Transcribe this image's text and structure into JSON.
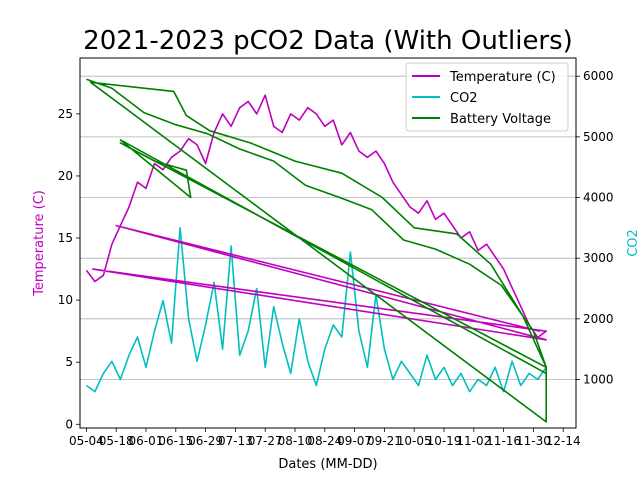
{
  "chart_data": {
    "type": "line",
    "title": "2021-2023 pCO2 Data (With Outliers)",
    "xlabel": "Dates (MM-DD)",
    "ylabel_left": "Temperature (C)",
    "ylabel_right": "CO2",
    "x_ticks": [
      "05-04",
      "05-18",
      "06-01",
      "06-15",
      "06-29",
      "07-13",
      "07-27",
      "08-10",
      "08-24",
      "09-07",
      "09-21",
      "10-05",
      "10-19",
      "11-02",
      "11-16",
      "11-30",
      "12-14"
    ],
    "x_range": [
      "05-01",
      "12-20"
    ],
    "ylim_left": [
      -0.3,
      29.5
    ],
    "ylim_right": [
      200,
      6300
    ],
    "y_ticks_left": [
      0,
      5,
      10,
      15,
      20,
      25
    ],
    "y_ticks_right": [
      1000,
      2000,
      3000,
      4000,
      5000,
      6000
    ],
    "grid": "horizontal lines at right-axis ticks",
    "legend_position": "top-right",
    "series": [
      {
        "name": "Temperature (C)",
        "axis": "left",
        "color": "#bf00bf",
        "values": [
          {
            "x": "05-04",
            "y": 12.4
          },
          {
            "x": "05-08",
            "y": 11.5
          },
          {
            "x": "05-12",
            "y": 12.0
          },
          {
            "x": "05-16",
            "y": 14.5
          },
          {
            "x": "05-20",
            "y": 16.0
          },
          {
            "x": "05-24",
            "y": 17.5
          },
          {
            "x": "05-28",
            "y": 19.5
          },
          {
            "x": "06-01",
            "y": 19.0
          },
          {
            "x": "06-05",
            "y": 21.0
          },
          {
            "x": "06-09",
            "y": 20.5
          },
          {
            "x": "06-13",
            "y": 21.5
          },
          {
            "x": "06-17",
            "y": 22.0
          },
          {
            "x": "06-21",
            "y": 23.0
          },
          {
            "x": "06-25",
            "y": 22.5
          },
          {
            "x": "06-29",
            "y": 21.0
          },
          {
            "x": "07-03",
            "y": 23.5
          },
          {
            "x": "07-07",
            "y": 25.0
          },
          {
            "x": "07-11",
            "y": 24.0
          },
          {
            "x": "07-15",
            "y": 25.5
          },
          {
            "x": "07-19",
            "y": 26.0
          },
          {
            "x": "07-23",
            "y": 25.0
          },
          {
            "x": "07-27",
            "y": 26.5
          },
          {
            "x": "07-31",
            "y": 24.0
          },
          {
            "x": "08-04",
            "y": 23.5
          },
          {
            "x": "08-08",
            "y": 25.0
          },
          {
            "x": "08-12",
            "y": 24.5
          },
          {
            "x": "08-16",
            "y": 25.5
          },
          {
            "x": "08-20",
            "y": 25.0
          },
          {
            "x": "08-24",
            "y": 24.0
          },
          {
            "x": "08-28",
            "y": 24.5
          },
          {
            "x": "09-01",
            "y": 22.5
          },
          {
            "x": "09-05",
            "y": 23.5
          },
          {
            "x": "09-09",
            "y": 22.0
          },
          {
            "x": "09-13",
            "y": 21.5
          },
          {
            "x": "09-17",
            "y": 22.0
          },
          {
            "x": "09-21",
            "y": 21.0
          },
          {
            "x": "09-25",
            "y": 19.5
          },
          {
            "x": "09-29",
            "y": 18.5
          },
          {
            "x": "10-03",
            "y": 17.5
          },
          {
            "x": "10-07",
            "y": 17.0
          },
          {
            "x": "10-11",
            "y": 18.0
          },
          {
            "x": "10-15",
            "y": 16.5
          },
          {
            "x": "10-19",
            "y": 17.0
          },
          {
            "x": "10-23",
            "y": 16.0
          },
          {
            "x": "10-27",
            "y": 15.0
          },
          {
            "x": "10-31",
            "y": 15.5
          },
          {
            "x": "11-04",
            "y": 14.0
          },
          {
            "x": "11-08",
            "y": 14.5
          },
          {
            "x": "11-12",
            "y": 13.5
          },
          {
            "x": "11-16",
            "y": 12.5
          },
          {
            "x": "11-20",
            "y": 11.0
          },
          {
            "x": "11-24",
            "y": 9.5
          },
          {
            "x": "11-28",
            "y": 8.0
          },
          {
            "x": "12-02",
            "y": 7.0
          },
          {
            "x": "12-06",
            "y": 7.5
          },
          {
            "x": "05-07",
            "y": 12.5
          },
          {
            "x": "12-06",
            "y": 6.8
          },
          {
            "x": "05-18",
            "y": 16.0
          },
          {
            "x": "12-03",
            "y": 7.5
          }
        ]
      },
      {
        "name": "CO2",
        "axis": "right",
        "color": "#00bfbf",
        "values": [
          {
            "x": "05-04",
            "y": 900
          },
          {
            "x": "05-08",
            "y": 800
          },
          {
            "x": "05-12",
            "y": 1100
          },
          {
            "x": "05-16",
            "y": 1300
          },
          {
            "x": "05-20",
            "y": 1000
          },
          {
            "x": "05-24",
            "y": 1400
          },
          {
            "x": "05-28",
            "y": 1700
          },
          {
            "x": "06-01",
            "y": 1200
          },
          {
            "x": "06-05",
            "y": 1800
          },
          {
            "x": "06-09",
            "y": 2300
          },
          {
            "x": "06-13",
            "y": 1600
          },
          {
            "x": "06-17",
            "y": 3500
          },
          {
            "x": "06-21",
            "y": 2000
          },
          {
            "x": "06-25",
            "y": 1300
          },
          {
            "x": "06-29",
            "y": 1900
          },
          {
            "x": "07-03",
            "y": 2600
          },
          {
            "x": "07-07",
            "y": 1500
          },
          {
            "x": "07-11",
            "y": 3200
          },
          {
            "x": "07-15",
            "y": 1400
          },
          {
            "x": "07-19",
            "y": 1800
          },
          {
            "x": "07-23",
            "y": 2500
          },
          {
            "x": "07-27",
            "y": 1200
          },
          {
            "x": "07-31",
            "y": 2200
          },
          {
            "x": "08-04",
            "y": 1600
          },
          {
            "x": "08-08",
            "y": 1100
          },
          {
            "x": "08-12",
            "y": 2000
          },
          {
            "x": "08-16",
            "y": 1300
          },
          {
            "x": "08-20",
            "y": 900
          },
          {
            "x": "08-24",
            "y": 1500
          },
          {
            "x": "08-28",
            "y": 1900
          },
          {
            "x": "09-01",
            "y": 1700
          },
          {
            "x": "09-05",
            "y": 3100
          },
          {
            "x": "09-09",
            "y": 1800
          },
          {
            "x": "09-13",
            "y": 1200
          },
          {
            "x": "09-17",
            "y": 2400
          },
          {
            "x": "09-21",
            "y": 1500
          },
          {
            "x": "09-25",
            "y": 1000
          },
          {
            "x": "09-29",
            "y": 1300
          },
          {
            "x": "10-03",
            "y": 1100
          },
          {
            "x": "10-07",
            "y": 900
          },
          {
            "x": "10-11",
            "y": 1400
          },
          {
            "x": "10-15",
            "y": 1000
          },
          {
            "x": "10-19",
            "y": 1200
          },
          {
            "x": "10-23",
            "y": 900
          },
          {
            "x": "10-27",
            "y": 1100
          },
          {
            "x": "10-31",
            "y": 800
          },
          {
            "x": "11-04",
            "y": 1000
          },
          {
            "x": "11-08",
            "y": 900
          },
          {
            "x": "11-12",
            "y": 1200
          },
          {
            "x": "11-16",
            "y": 800
          },
          {
            "x": "11-20",
            "y": 1300
          },
          {
            "x": "11-24",
            "y": 900
          },
          {
            "x": "11-28",
            "y": 1100
          },
          {
            "x": "12-02",
            "y": 1000
          },
          {
            "x": "12-06",
            "y": 1200
          }
        ]
      },
      {
        "name": "Battery Voltage",
        "axis": "right",
        "color": "#008000",
        "values": [
          {
            "x": "05-04",
            "y": 5950
          },
          {
            "x": "05-16",
            "y": 5800
          },
          {
            "x": "05-31",
            "y": 5400
          },
          {
            "x": "06-15",
            "y": 5200
          },
          {
            "x": "06-30",
            "y": 5050
          },
          {
            "x": "07-15",
            "y": 4800
          },
          {
            "x": "07-31",
            "y": 4600
          },
          {
            "x": "08-15",
            "y": 4200
          },
          {
            "x": "08-31",
            "y": 4000
          },
          {
            "x": "09-15",
            "y": 3800
          },
          {
            "x": "09-30",
            "y": 3300
          },
          {
            "x": "10-15",
            "y": 3150
          },
          {
            "x": "10-31",
            "y": 2900
          },
          {
            "x": "11-15",
            "y": 2550
          },
          {
            "x": "11-30",
            "y": 1800
          },
          {
            "x": "12-06",
            "y": 1200
          },
          {
            "x": "12-06",
            "y": 300
          },
          {
            "x": "05-06",
            "y": 5900
          },
          {
            "x": "06-14",
            "y": 5750
          },
          {
            "x": "06-20",
            "y": 5350
          },
          {
            "x": "07-01",
            "y": 5100
          },
          {
            "x": "07-20",
            "y": 4900
          },
          {
            "x": "08-10",
            "y": 4600
          },
          {
            "x": "09-01",
            "y": 4400
          },
          {
            "x": "09-20",
            "y": 4000
          },
          {
            "x": "10-05",
            "y": 3500
          },
          {
            "x": "10-25",
            "y": 3400
          },
          {
            "x": "11-10",
            "y": 2900
          },
          {
            "x": "11-25",
            "y": 2050
          },
          {
            "x": "12-06",
            "y": 1200
          },
          {
            "x": "05-20",
            "y": 4900
          },
          {
            "x": "06-05",
            "y": 4600
          },
          {
            "x": "06-20",
            "y": 4450
          },
          {
            "x": "06-22",
            "y": 4000
          },
          {
            "x": "05-20",
            "y": 4950
          },
          {
            "x": "12-06",
            "y": 1100
          }
        ]
      }
    ]
  }
}
